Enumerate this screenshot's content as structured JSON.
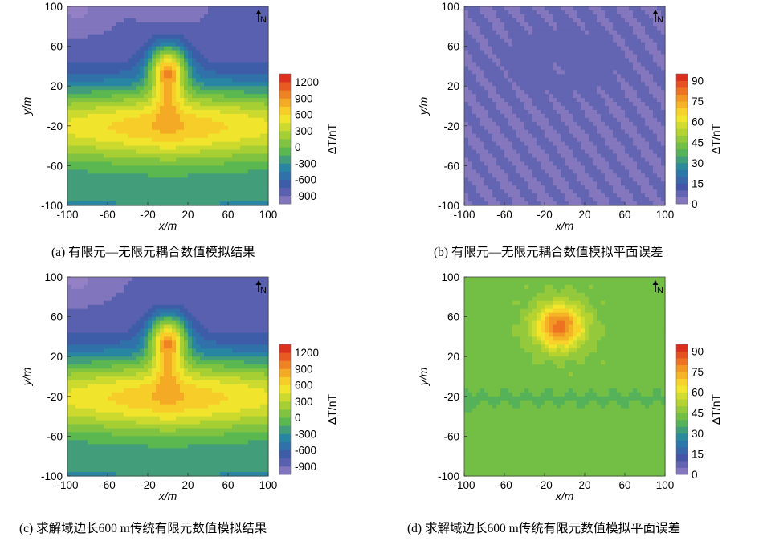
{
  "figure": {
    "north_label": "N",
    "captions": [
      "(a) 有限元—无限元耦合数值模拟结果",
      "(b) 有限元—无限元耦合数值模拟平面误差",
      "(c) 求解域边长600 m传统有限元数值模拟结果",
      "(d) 求解域边长600 m传统有限元数值模拟平面误差"
    ]
  },
  "chart_data": [
    {
      "type": "heatmap",
      "panel": "a",
      "title": "",
      "xlabel": "x/m",
      "ylabel": "y/m",
      "xlim": [
        -100,
        100
      ],
      "ylim": [
        -100,
        100
      ],
      "xticks": [
        -100,
        -60,
        -20,
        20,
        60,
        100
      ],
      "yticks": [
        -100,
        -60,
        -20,
        20,
        60,
        100
      ],
      "colorbar": {
        "label": "ΔT/nT",
        "ticks": [
          -900,
          -600,
          -300,
          0,
          300,
          600,
          900,
          1200
        ],
        "range": [
          -1050,
          1350
        ]
      },
      "features": [
        {
          "kind": "max",
          "x": 0,
          "y": 40,
          "value": 1300
        },
        {
          "kind": "high-ridge",
          "x": 0,
          "y": -20,
          "value": 850
        },
        {
          "kind": "min",
          "x": 0,
          "y": 92,
          "value": -950
        },
        {
          "kind": "min",
          "x": -90,
          "y": 95,
          "value": -1000
        }
      ],
      "north_arrow": true
    },
    {
      "type": "heatmap",
      "panel": "b",
      "title": "",
      "xlabel": "x/m",
      "ylabel": "y/m",
      "xlim": [
        -100,
        100
      ],
      "ylim": [
        -100,
        100
      ],
      "xticks": [
        -100,
        -60,
        -20,
        20,
        60,
        100
      ],
      "yticks": [
        -100,
        -60,
        -20,
        20,
        60,
        100
      ],
      "colorbar": {
        "label": "ΔT/nT",
        "ticks": [
          0,
          15,
          30,
          45,
          60,
          75,
          90
        ],
        "range": [
          0,
          95
        ]
      },
      "features": [
        {
          "kind": "background",
          "value": 5
        },
        {
          "kind": "slightly-higher",
          "x": 0,
          "y": 50,
          "value": 9
        },
        {
          "kind": "lower",
          "x": 0,
          "y": 40,
          "value": 2
        }
      ],
      "north_arrow": true
    },
    {
      "type": "heatmap",
      "panel": "c",
      "title": "",
      "xlabel": "x/m",
      "ylabel": "y/m",
      "xlim": [
        -100,
        100
      ],
      "ylim": [
        -100,
        100
      ],
      "xticks": [
        -100,
        -60,
        -20,
        20,
        60,
        100
      ],
      "yticks": [
        -100,
        -60,
        -20,
        20,
        60,
        100
      ],
      "colorbar": {
        "label": "ΔT/nT",
        "ticks": [
          -900,
          -600,
          -300,
          0,
          300,
          600,
          900,
          1200
        ],
        "range": [
          -1050,
          1350
        ]
      },
      "features": [
        {
          "kind": "max",
          "x": 0,
          "y": 40,
          "value": 1300
        },
        {
          "kind": "high-ridge",
          "x": 0,
          "y": -20,
          "value": 850
        },
        {
          "kind": "min",
          "x": -90,
          "y": 95,
          "value": -1000
        }
      ],
      "north_arrow": true
    },
    {
      "type": "heatmap",
      "panel": "d",
      "title": "",
      "xlabel": "x/m",
      "ylabel": "y/m",
      "xlim": [
        -100,
        100
      ],
      "ylim": [
        -100,
        100
      ],
      "xticks": [
        -100,
        -60,
        -20,
        20,
        60,
        100
      ],
      "yticks": [
        -100,
        -60,
        -20,
        20,
        60,
        100
      ],
      "colorbar": {
        "label": "ΔT/nT",
        "ticks": [
          0,
          15,
          30,
          45,
          60,
          75,
          90
        ],
        "range": [
          0,
          95
        ]
      },
      "features": [
        {
          "kind": "background",
          "value": 42
        },
        {
          "kind": "max",
          "x": 0,
          "y": 50,
          "value": 85
        },
        {
          "kind": "lower-band",
          "y": -20,
          "value": 38
        }
      ],
      "north_arrow": true
    }
  ]
}
